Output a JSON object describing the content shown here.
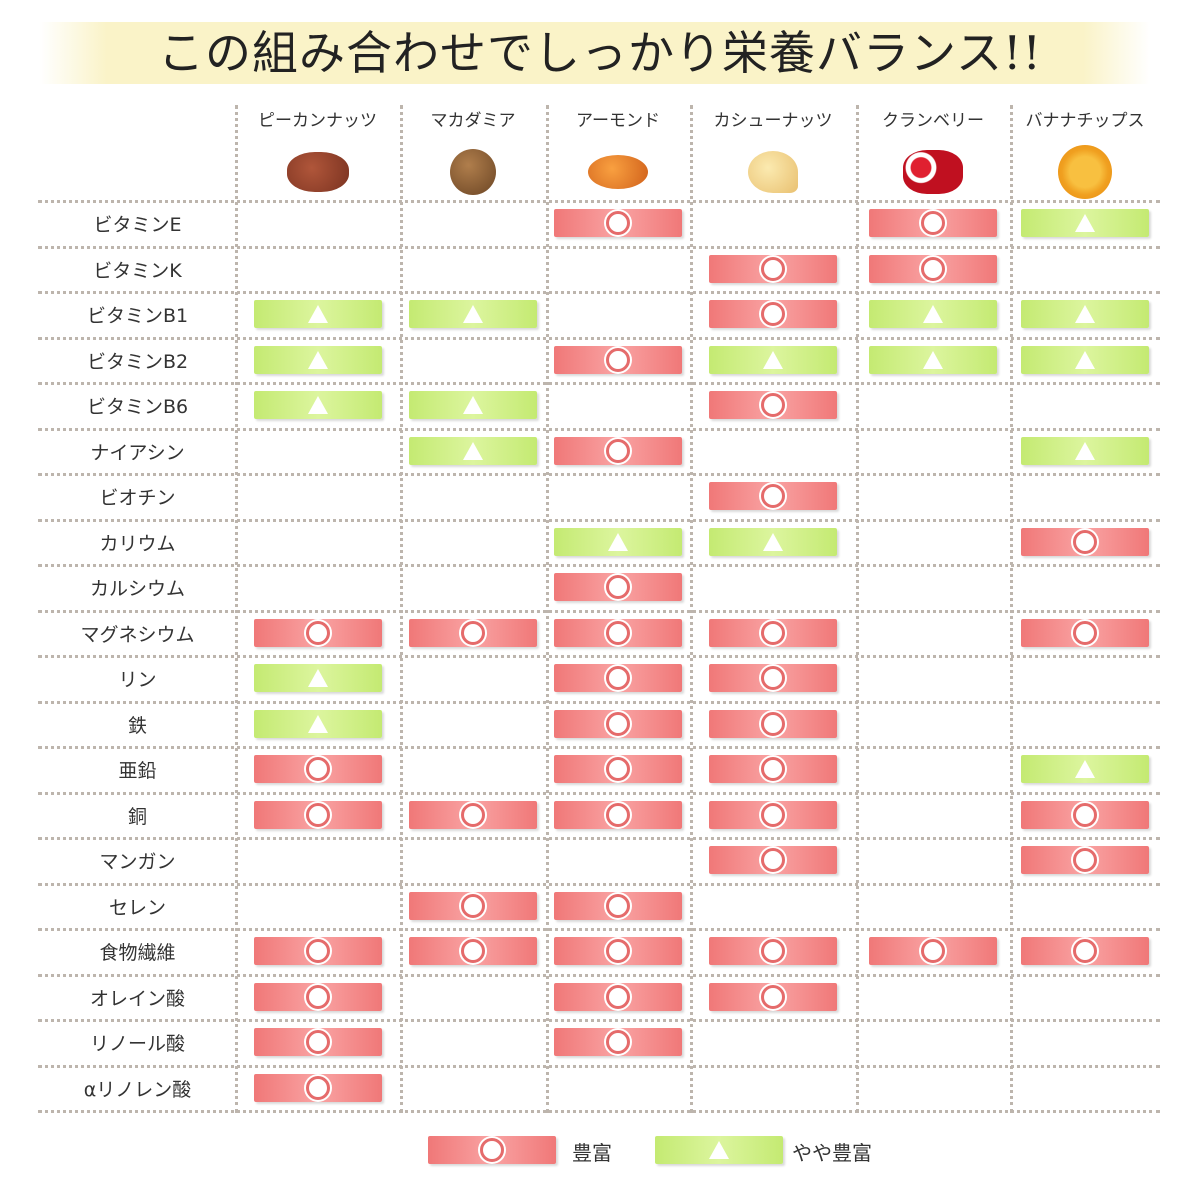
{
  "title": "この組み合わせでしっかり栄養バランス!!",
  "colors": {
    "rich": "#f07878",
    "somewhat_rich": "#c4ea72",
    "banner": "#faf3c8"
  },
  "chart_data": {
    "type": "table",
    "columns": [
      "ピーカンナッツ",
      "マカダミア",
      "アーモンド",
      "カシューナッツ",
      "クランベリー",
      "バナナチップス"
    ],
    "legend": {
      "rich": {
        "symbol": "◎",
        "label": "豊富"
      },
      "somewhat": {
        "symbol": "▲",
        "label": "やや豊富"
      }
    },
    "rows": [
      {
        "label": "ビタミンE",
        "values": [
          "",
          "",
          "rich",
          "",
          "rich",
          "somewhat"
        ]
      },
      {
        "label": "ビタミンK",
        "values": [
          "",
          "",
          "",
          "rich",
          "rich",
          ""
        ]
      },
      {
        "label": "ビタミンB1",
        "values": [
          "somewhat",
          "somewhat",
          "",
          "rich",
          "somewhat",
          "somewhat"
        ]
      },
      {
        "label": "ビタミンB2",
        "values": [
          "somewhat",
          "",
          "rich",
          "somewhat",
          "somewhat",
          "somewhat"
        ]
      },
      {
        "label": "ビタミンB6",
        "values": [
          "somewhat",
          "somewhat",
          "",
          "rich",
          "",
          ""
        ]
      },
      {
        "label": "ナイアシン",
        "values": [
          "",
          "somewhat",
          "rich",
          "",
          "",
          "somewhat"
        ]
      },
      {
        "label": "ビオチン",
        "values": [
          "",
          "",
          "",
          "rich",
          "",
          ""
        ]
      },
      {
        "label": "カリウム",
        "values": [
          "",
          "",
          "somewhat",
          "somewhat",
          "",
          "rich"
        ]
      },
      {
        "label": "カルシウム",
        "values": [
          "",
          "",
          "rich",
          "",
          "",
          ""
        ]
      },
      {
        "label": "マグネシウム",
        "values": [
          "rich",
          "rich",
          "rich",
          "rich",
          "",
          "rich"
        ]
      },
      {
        "label": "リン",
        "values": [
          "somewhat",
          "",
          "rich",
          "rich",
          "",
          ""
        ]
      },
      {
        "label": "鉄",
        "values": [
          "somewhat",
          "",
          "rich",
          "rich",
          "",
          ""
        ]
      },
      {
        "label": "亜鉛",
        "values": [
          "rich",
          "",
          "rich",
          "rich",
          "",
          "somewhat"
        ]
      },
      {
        "label": "銅",
        "values": [
          "rich",
          "rich",
          "rich",
          "rich",
          "",
          "rich"
        ]
      },
      {
        "label": "マンガン",
        "values": [
          "",
          "",
          "",
          "rich",
          "",
          "rich"
        ]
      },
      {
        "label": "セレン",
        "values": [
          "",
          "rich",
          "rich",
          "",
          "",
          ""
        ]
      },
      {
        "label": "食物繊維",
        "values": [
          "rich",
          "rich",
          "rich",
          "rich",
          "rich",
          "rich"
        ]
      },
      {
        "label": "オレイン酸",
        "values": [
          "rich",
          "",
          "rich",
          "rich",
          "",
          ""
        ]
      },
      {
        "label": "リノール酸",
        "values": [
          "rich",
          "",
          "rich",
          "",
          "",
          ""
        ]
      },
      {
        "label": "αリノレン酸",
        "values": [
          "rich",
          "",
          "",
          "",
          "",
          ""
        ]
      }
    ]
  }
}
